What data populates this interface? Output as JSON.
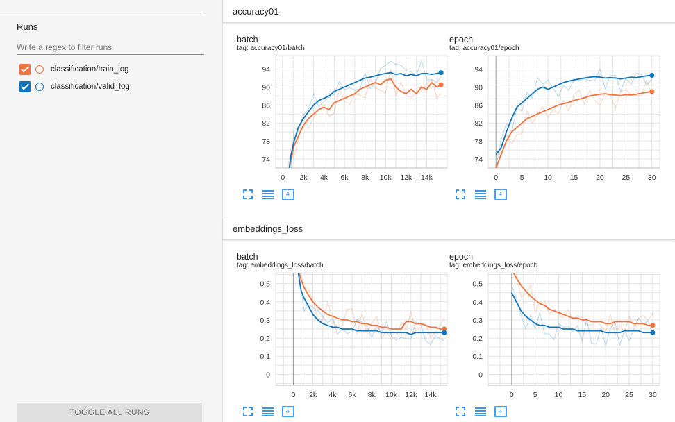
{
  "sidebar": {
    "runs_title": "Runs",
    "filter_placeholder": "Write a regex to filter runs",
    "runs": [
      {
        "label": "classification/train_log",
        "color": "#f0733d",
        "checked": true
      },
      {
        "label": "classification/valid_log",
        "color": "#0f75bb",
        "checked": true
      }
    ],
    "toggle_label": "TOGGLE ALL RUNS"
  },
  "colors": {
    "train": "#f0733d",
    "valid": "#0f75bb"
  },
  "sections": [
    {
      "title": "accuracy01",
      "cards": [
        {
          "title": "batch",
          "tag": "tag: accuracy01/batch"
        },
        {
          "title": "epoch",
          "tag": "tag: accuracy01/epoch"
        }
      ]
    },
    {
      "title": "embeddings_loss",
      "cards": [
        {
          "title": "batch",
          "tag": "tag: embeddings_loss/batch"
        },
        {
          "title": "epoch",
          "tag": "tag: embeddings_loss/epoch"
        }
      ]
    }
  ],
  "chart_data": [
    {
      "type": "line",
      "title": "batch",
      "tag": "tag: accuracy01/batch",
      "xlim": [
        -700,
        16000
      ],
      "ylim": [
        72,
        97
      ],
      "xticks": [
        0,
        2000,
        4000,
        6000,
        8000,
        10000,
        12000,
        14000
      ],
      "xtick_labels": [
        "0",
        "2k",
        "4k",
        "6k",
        "8k",
        "10k",
        "12k",
        "14k"
      ],
      "yticks": [
        74,
        78,
        82,
        86,
        90,
        94
      ],
      "ytick_labels": [
        "74",
        "78",
        "82",
        "86",
        "90",
        "94"
      ],
      "series": [
        {
          "name": "classification/train_log",
          "color": "#f0733d",
          "x": [
            500,
            800,
            1100,
            1500,
            2000,
            2500,
            3000,
            3500,
            4000,
            4500,
            5000,
            5500,
            6000,
            6500,
            7000,
            7500,
            8000,
            8500,
            9000,
            9500,
            10000,
            10500,
            11000,
            11500,
            12000,
            12500,
            13000,
            13500,
            14000,
            14500,
            15000,
            15400
          ],
          "y": [
            70,
            74,
            77,
            79,
            81.5,
            83,
            84,
            85,
            85.5,
            85,
            86.5,
            87,
            87.5,
            88,
            88.5,
            89.5,
            90,
            90.5,
            91,
            90.5,
            91.5,
            91.8,
            90,
            89,
            88.5,
            89.5,
            88.5,
            90,
            89.5,
            91,
            90,
            90.5
          ]
        },
        {
          "name": "classification/valid_log",
          "color": "#0f75bb",
          "x": [
            500,
            800,
            1100,
            1500,
            2000,
            2500,
            3000,
            3500,
            4000,
            4500,
            5000,
            5500,
            6000,
            6500,
            7000,
            7500,
            8000,
            8500,
            9000,
            9500,
            10000,
            10500,
            11000,
            11500,
            12000,
            12500,
            13000,
            13500,
            14000,
            14500,
            15000,
            15400
          ],
          "y": [
            70,
            75,
            78,
            81,
            83,
            84.5,
            86,
            87,
            87.5,
            88,
            89,
            89.5,
            90,
            90.5,
            91,
            91.5,
            92,
            92.2,
            92.5,
            92.8,
            93,
            93.2,
            92.8,
            93,
            92.5,
            92.8,
            92.5,
            93,
            93,
            92.8,
            93,
            93.2
          ]
        }
      ]
    },
    {
      "type": "line",
      "title": "epoch",
      "tag": "tag: accuracy01/epoch",
      "xlim": [
        -1.5,
        31.5
      ],
      "ylim": [
        72,
        97
      ],
      "xticks": [
        0,
        5,
        10,
        15,
        20,
        25,
        30
      ],
      "xtick_labels": [
        "0",
        "5",
        "10",
        "15",
        "20",
        "25",
        "30"
      ],
      "yticks": [
        74,
        78,
        82,
        86,
        90,
        94
      ],
      "ytick_labels": [
        "74",
        "78",
        "82",
        "86",
        "90",
        "94"
      ],
      "series": [
        {
          "name": "classification/train_log",
          "color": "#f0733d",
          "x": [
            0,
            1,
            2,
            3,
            4,
            5,
            6,
            7,
            8,
            9,
            10,
            11,
            12,
            13,
            14,
            15,
            16,
            17,
            18,
            19,
            20,
            21,
            22,
            23,
            24,
            25,
            26,
            27,
            28,
            29,
            30
          ],
          "y": [
            72,
            75,
            78,
            80,
            81,
            82,
            83,
            83.5,
            84,
            84.5,
            85,
            85.5,
            86,
            86.3,
            86.6,
            87,
            87.3,
            87.6,
            88,
            88.2,
            88.4,
            88.5,
            88.3,
            88.2,
            88.1,
            88.3,
            88.2,
            88.4,
            88.6,
            88.8,
            89
          ]
        },
        {
          "name": "classification/valid_log",
          "color": "#0f75bb",
          "x": [
            0,
            1,
            2,
            3,
            4,
            5,
            6,
            7,
            8,
            9,
            10,
            11,
            12,
            13,
            14,
            15,
            16,
            17,
            18,
            19,
            20,
            21,
            22,
            23,
            24,
            25,
            26,
            27,
            28,
            29,
            30
          ],
          "y": [
            75,
            76.5,
            80,
            83,
            85.5,
            86.5,
            87.5,
            88.5,
            89.5,
            90,
            89.5,
            90,
            90.5,
            91,
            91.3,
            91.6,
            91.8,
            92,
            92.2,
            92.3,
            92.2,
            92,
            92.1,
            92,
            91.8,
            92,
            92.2,
            92.1,
            92.3,
            92.5,
            92.6
          ]
        }
      ]
    },
    {
      "type": "line",
      "title": "batch",
      "tag": "tag: embeddings_loss/batch",
      "xlim": [
        -1800,
        15700
      ],
      "ylim": [
        -0.06,
        0.56
      ],
      "xticks": [
        0,
        2000,
        4000,
        6000,
        8000,
        10000,
        12000,
        14000
      ],
      "xtick_labels": [
        "0",
        "2k",
        "4k",
        "6k",
        "8k",
        "10k",
        "12k",
        "14k"
      ],
      "yticks": [
        0,
        0.1,
        0.2,
        0.3,
        0.4,
        0.5
      ],
      "ytick_labels": [
        "0",
        "0.1",
        "0.2",
        "0.3",
        "0.4",
        "0.5"
      ],
      "series": [
        {
          "name": "classification/train_log",
          "color": "#f0733d",
          "x": [
            500,
            800,
            1100,
            1500,
            2000,
            2500,
            3000,
            3500,
            4000,
            4500,
            5000,
            5500,
            6000,
            6500,
            7000,
            7500,
            8000,
            8500,
            9000,
            9500,
            10000,
            10500,
            11000,
            11500,
            12000,
            12500,
            13000,
            13500,
            14000,
            14500,
            15000,
            15400
          ],
          "y": [
            0.58,
            0.52,
            0.48,
            0.44,
            0.4,
            0.37,
            0.35,
            0.33,
            0.32,
            0.31,
            0.3,
            0.3,
            0.29,
            0.29,
            0.28,
            0.28,
            0.27,
            0.27,
            0.26,
            0.26,
            0.25,
            0.25,
            0.25,
            0.29,
            0.29,
            0.28,
            0.28,
            0.27,
            0.26,
            0.26,
            0.25,
            0.25
          ]
        },
        {
          "name": "classification/valid_log",
          "color": "#0f75bb",
          "x": [
            500,
            800,
            1100,
            1500,
            2000,
            2500,
            3000,
            3500,
            4000,
            4500,
            5000,
            5500,
            6000,
            6500,
            7000,
            7500,
            8000,
            8500,
            9000,
            9500,
            10000,
            10500,
            11000,
            11500,
            12000,
            12500,
            13000,
            13500,
            14000,
            14500,
            15000,
            15400
          ],
          "y": [
            0.56,
            0.46,
            0.42,
            0.38,
            0.33,
            0.3,
            0.28,
            0.27,
            0.26,
            0.26,
            0.25,
            0.25,
            0.25,
            0.24,
            0.24,
            0.24,
            0.24,
            0.24,
            0.23,
            0.23,
            0.23,
            0.23,
            0.23,
            0.23,
            0.22,
            0.23,
            0.23,
            0.23,
            0.23,
            0.23,
            0.23,
            0.23
          ]
        }
      ]
    },
    {
      "type": "line",
      "title": "epoch",
      "tag": "tag: embeddings_loss/epoch",
      "xlim": [
        -5,
        31.5
      ],
      "ylim": [
        -0.06,
        0.56
      ],
      "xticks": [
        0,
        5,
        10,
        15,
        20,
        25,
        30
      ],
      "xtick_labels": [
        "0",
        "5",
        "10",
        "15",
        "20",
        "25",
        "30"
      ],
      "yticks": [
        0,
        0.1,
        0.2,
        0.3,
        0.4,
        0.5
      ],
      "ytick_labels": [
        "0",
        "0.1",
        "0.2",
        "0.3",
        "0.4",
        "0.5"
      ],
      "series": [
        {
          "name": "classification/train_log",
          "color": "#f0733d",
          "x": [
            0,
            1,
            2,
            3,
            4,
            5,
            6,
            7,
            8,
            9,
            10,
            11,
            12,
            13,
            14,
            15,
            16,
            17,
            18,
            19,
            20,
            21,
            22,
            23,
            24,
            25,
            26,
            27,
            28,
            29,
            30
          ],
          "y": [
            0.58,
            0.53,
            0.49,
            0.46,
            0.43,
            0.41,
            0.39,
            0.38,
            0.36,
            0.35,
            0.34,
            0.33,
            0.32,
            0.31,
            0.31,
            0.3,
            0.3,
            0.29,
            0.29,
            0.29,
            0.28,
            0.28,
            0.29,
            0.29,
            0.29,
            0.29,
            0.28,
            0.28,
            0.28,
            0.27,
            0.27
          ]
        },
        {
          "name": "classification/valid_log",
          "color": "#0f75bb",
          "x": [
            0,
            1,
            2,
            3,
            4,
            5,
            6,
            7,
            8,
            9,
            10,
            11,
            12,
            13,
            14,
            15,
            16,
            17,
            18,
            19,
            20,
            21,
            22,
            23,
            24,
            25,
            26,
            27,
            28,
            29,
            30
          ],
          "y": [
            0.45,
            0.4,
            0.35,
            0.32,
            0.3,
            0.28,
            0.27,
            0.27,
            0.26,
            0.26,
            0.26,
            0.25,
            0.25,
            0.25,
            0.24,
            0.24,
            0.24,
            0.24,
            0.24,
            0.24,
            0.23,
            0.23,
            0.23,
            0.23,
            0.24,
            0.24,
            0.24,
            0.24,
            0.23,
            0.23,
            0.23
          ]
        }
      ]
    }
  ]
}
